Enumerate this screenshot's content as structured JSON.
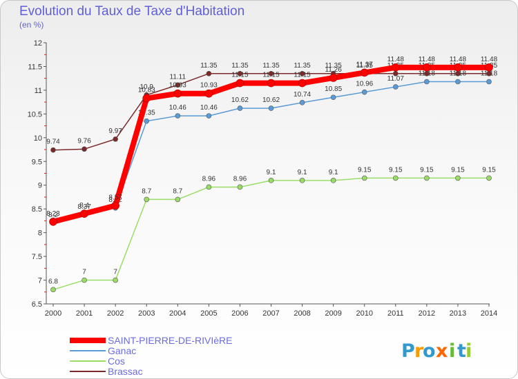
{
  "title": "Evolution du Taux de Taxe d'Habitation",
  "subtitle": "(en %)",
  "logo": {
    "letters": [
      "P",
      "r",
      "o",
      "x",
      "i",
      "t",
      "i"
    ]
  },
  "colors": {
    "primary": "#ff0000",
    "ganac": "#5a9bd5",
    "cos": "#99dd66",
    "brassac": "#7a2a2a",
    "title": "#5f5fd6"
  },
  "chart_data": {
    "type": "line",
    "title": "Evolution du Taux de Taxe d'Habitation",
    "subtitle": "(en %)",
    "xlabel": "",
    "ylabel": "",
    "x": [
      "2000",
      "2001",
      "2002",
      "2003",
      "2004",
      "2005",
      "2006",
      "2007",
      "2008",
      "2009",
      "2010",
      "2011",
      "2012",
      "2013",
      "2014"
    ],
    "yticks": [
      "6.5",
      "7",
      "7.5",
      "8",
      "8.5",
      "9",
      "9.5",
      "10",
      "10.5",
      "11",
      "11.5",
      "12"
    ],
    "ylim": [
      6.5,
      12
    ],
    "grid": false,
    "legend": "bottom-left",
    "series": [
      {
        "name": "Brassac",
        "color": "#7a2a2a",
        "values": [
          9.74,
          9.76,
          9.97,
          10.9,
          11.11,
          11.35,
          11.35,
          11.35,
          11.35,
          11.35,
          11.35,
          11.35,
          11.35,
          11.35,
          11.35
        ],
        "labels": [
          "9.74",
          "9.76",
          "9.97",
          "10.9",
          "11.11",
          "11.35",
          "11.35",
          "11.35",
          "11.35",
          "11.35",
          "11.35",
          "11.35",
          "11.35",
          "11.35",
          "11.35"
        ]
      },
      {
        "name": "Ganac",
        "color": "#5a9bd5",
        "values": [
          8.2,
          8.37,
          8.52,
          10.35,
          10.46,
          10.46,
          10.62,
          10.62,
          10.74,
          10.85,
          10.96,
          11.07,
          11.18,
          11.18,
          11.18
        ],
        "labels": [
          "8.2",
          "8.37",
          "8.52",
          "10.35",
          "10.46",
          "10.46",
          "10.62",
          "10.62",
          "10.74",
          "10.85",
          "10.96",
          "11.07",
          "11.18",
          "11.18",
          "11.18"
        ]
      },
      {
        "name": "Cos",
        "color": "#99dd66",
        "values": [
          6.8,
          7,
          7,
          8.7,
          8.7,
          8.96,
          8.96,
          9.1,
          9.1,
          9.1,
          9.15,
          9.15,
          9.15,
          9.15,
          9.15
        ],
        "labels": [
          "6.8",
          "7",
          "7",
          "8.7",
          "8.7",
          "8.96",
          "8.96",
          "9.1",
          "9.1",
          "9.1",
          "9.15",
          "9.15",
          "9.15",
          "9.15",
          "9.15"
        ]
      },
      {
        "name": "SAINT-PIERRE-DE-RIVIèRE",
        "color": "#ff0000",
        "values": [
          8.23,
          8.4,
          8.57,
          10.83,
          10.93,
          10.93,
          11.15,
          11.15,
          11.15,
          11.26,
          11.37,
          11.48,
          11.48,
          11.48,
          11.48
        ],
        "labels": [
          "8.23",
          "8.4",
          "8.57",
          "10.83",
          "10.93",
          "10.93",
          "11.15",
          "11.15",
          "11.15",
          "11.26",
          "11.37",
          "11.48",
          "11.48",
          "11.48",
          "11.48"
        ]
      }
    ]
  }
}
